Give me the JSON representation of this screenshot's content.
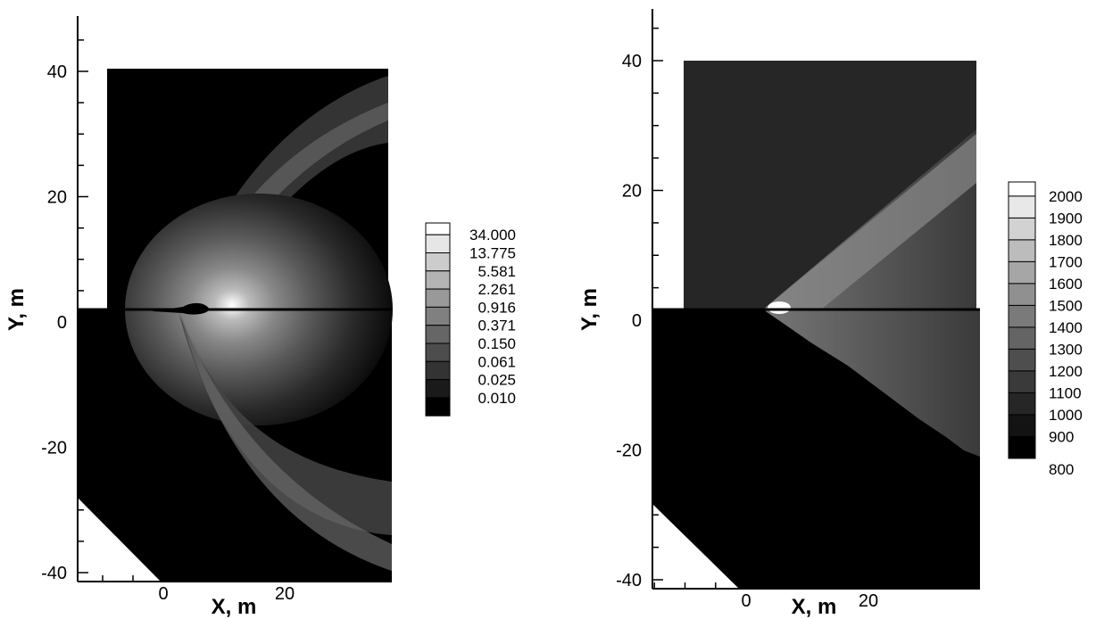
{
  "chart_data": [
    {
      "type": "heatmap",
      "xlabel": "X, m",
      "ylabel": "Y, m",
      "xlim": [
        -15,
        37
      ],
      "ylim": [
        -41,
        48
      ],
      "x_ticks": [
        0,
        20
      ],
      "y_ticks": [
        40,
        20,
        0,
        -20,
        -40
      ],
      "legend_position": "right",
      "legend_levels": [
        "34.000",
        "13.775",
        "5.581",
        "2.261",
        "0.916",
        "0.371",
        "0.150",
        "0.061",
        "0.025",
        "0.010"
      ],
      "colors": [
        "#ffffff",
        "#e6e6e6",
        "#cccccc",
        "#b3b3b3",
        "#999999",
        "#808080",
        "#666666",
        "#4d4d4d",
        "#333333",
        "#1a1a1a",
        "#000000"
      ]
    },
    {
      "type": "heatmap",
      "xlabel": "X, m",
      "ylabel": "Y, m",
      "xlim": [
        -15,
        37
      ],
      "ylim": [
        -41,
        48
      ],
      "x_ticks": [
        0,
        20
      ],
      "y_ticks": [
        40,
        20,
        0,
        -20,
        -40
      ],
      "legend_position": "right",
      "legend_levels": [
        "2000",
        "1900",
        "1800",
        "1700",
        "1600",
        "1500",
        "1400",
        "1300",
        "1200",
        "1100",
        "1000",
        "900",
        "800"
      ],
      "colors": [
        "#ffffff",
        "#e8e8e8",
        "#d2d2d2",
        "#bcbcbc",
        "#a6a6a6",
        "#909090",
        "#7a7a7a",
        "#646464",
        "#4e4e4e",
        "#3a3a3a",
        "#262626",
        "#131313",
        "#000000"
      ]
    }
  ]
}
